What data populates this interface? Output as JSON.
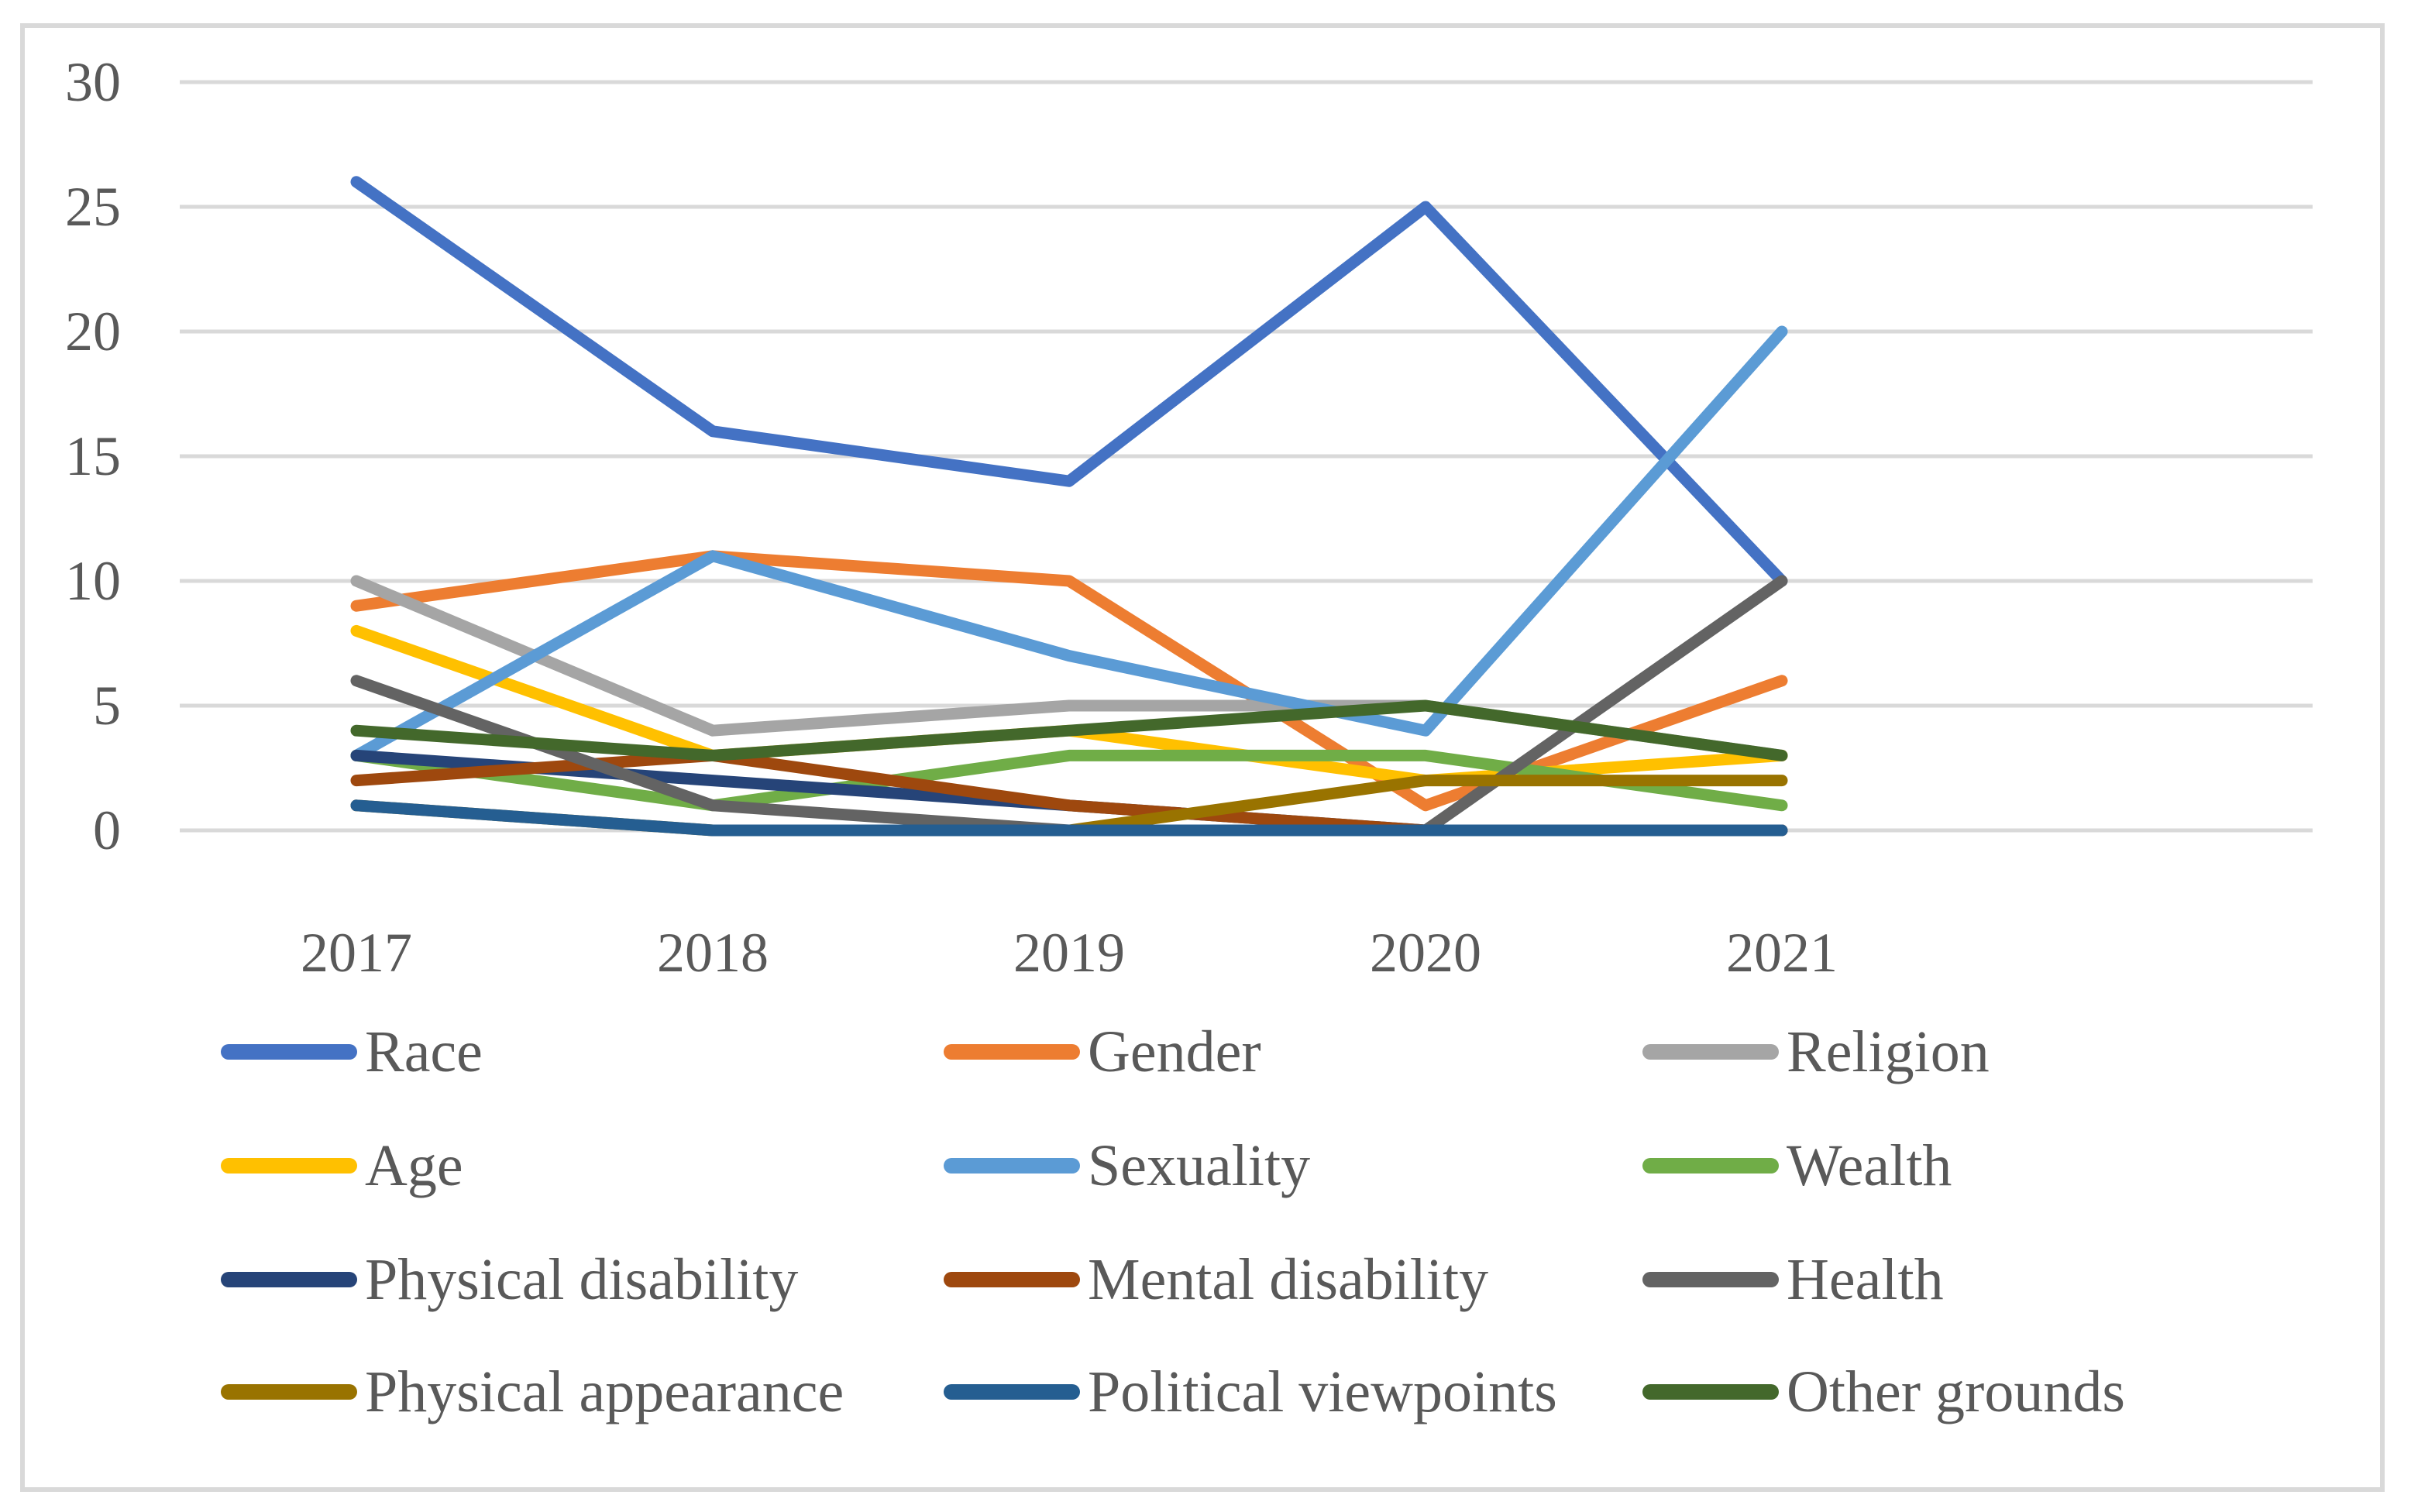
{
  "chart_data": {
    "type": "line",
    "title": "",
    "xlabel": "",
    "ylabel": "",
    "x": [
      "2017",
      "2018",
      "2019",
      "2020",
      "2021"
    ],
    "y_ticks": [
      0,
      5,
      10,
      15,
      20,
      25,
      30
    ],
    "ylim": [
      0,
      30
    ],
    "grid": true,
    "gridline_color": "#D9D9D9",
    "axis_text_color": "#595959",
    "legend_position": "bottom",
    "series": [
      {
        "name": "Race",
        "color": "#4472C4",
        "values": [
          26,
          16,
          14,
          25,
          10
        ]
      },
      {
        "name": "Gender",
        "color": "#ED7D31",
        "values": [
          9,
          11,
          10,
          1,
          6
        ]
      },
      {
        "name": "Religion",
        "color": "#A5A5A5",
        "values": [
          10,
          4,
          5,
          5,
          3
        ]
      },
      {
        "name": "Age",
        "color": "#FFC000",
        "values": [
          8,
          3,
          4,
          2,
          3
        ]
      },
      {
        "name": "Sexuality",
        "color": "#5B9BD5",
        "values": [
          3,
          11,
          7,
          4,
          20
        ]
      },
      {
        "name": "Wealth",
        "color": "#70AD47",
        "values": [
          3,
          1,
          3,
          3,
          1
        ]
      },
      {
        "name": "Physical disability",
        "color": "#264478",
        "values": [
          3,
          2,
          1,
          0,
          0
        ]
      },
      {
        "name": "Mental disability",
        "color": "#9E480E",
        "values": [
          2,
          3,
          1,
          0,
          0
        ]
      },
      {
        "name": "Health",
        "color": "#636363",
        "values": [
          6,
          1,
          0,
          0,
          10
        ]
      },
      {
        "name": "Physical appearance",
        "color": "#997300",
        "values": [
          1,
          0,
          0,
          2,
          2
        ]
      },
      {
        "name": "Political viewpoints",
        "color": "#255E91",
        "values": [
          1,
          0,
          0,
          0,
          0
        ]
      },
      {
        "name": "Other grounds",
        "color": "#43682B",
        "values": [
          4,
          3,
          4,
          5,
          3
        ]
      }
    ]
  }
}
